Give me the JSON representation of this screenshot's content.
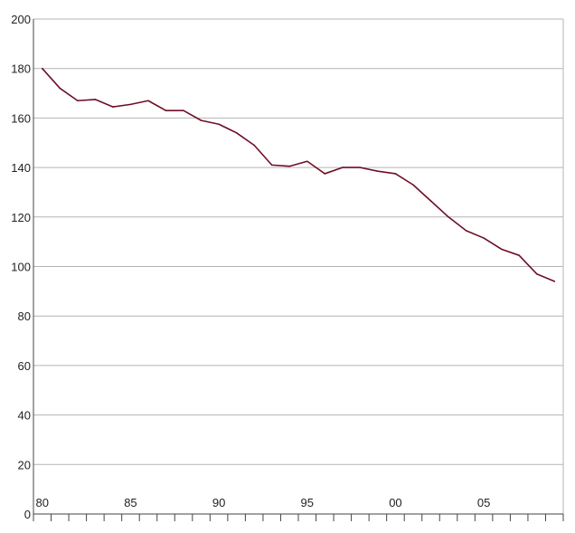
{
  "chart_data": {
    "type": "line",
    "title": "",
    "xlabel": "",
    "ylabel": "",
    "ylim": [
      0,
      200
    ],
    "xlim": [
      1980,
      2009
    ],
    "y_ticks": [
      0,
      20,
      40,
      60,
      80,
      100,
      120,
      140,
      160,
      180,
      200
    ],
    "y_tick_labels": [
      "0",
      "20",
      "40",
      "60",
      "80",
      "100",
      "120",
      "140",
      "160",
      "180",
      "200"
    ],
    "x_tick_values": [
      1980,
      1985,
      1990,
      1995,
      2000,
      2005
    ],
    "x_tick_labels": [
      "80",
      "85",
      "90",
      "95",
      "00",
      "05"
    ],
    "grid": true,
    "legend": "none",
    "colors": {
      "line": "#6e0f26",
      "grid": "#b4b4b4",
      "axis": "#444444"
    },
    "series": [
      {
        "x": [
          1980,
          1981,
          1982,
          1983,
          1984,
          1985,
          1986,
          1987,
          1988,
          1989,
          1990,
          1991,
          1992,
          1993,
          1994,
          1995,
          1996,
          1997,
          1998,
          1999,
          2000,
          2001,
          2002,
          2003,
          2004,
          2005,
          2006,
          2007,
          2008,
          2009
        ],
        "values": [
          180,
          172,
          167,
          167.5,
          164.5,
          165.5,
          167,
          163,
          163,
          159,
          157.5,
          154,
          149,
          141,
          140.5,
          142.5,
          137.5,
          140,
          140,
          138.5,
          137.5,
          133,
          126.5,
          120,
          114.5,
          111.5,
          107,
          104.5,
          97,
          94
        ]
      }
    ]
  }
}
